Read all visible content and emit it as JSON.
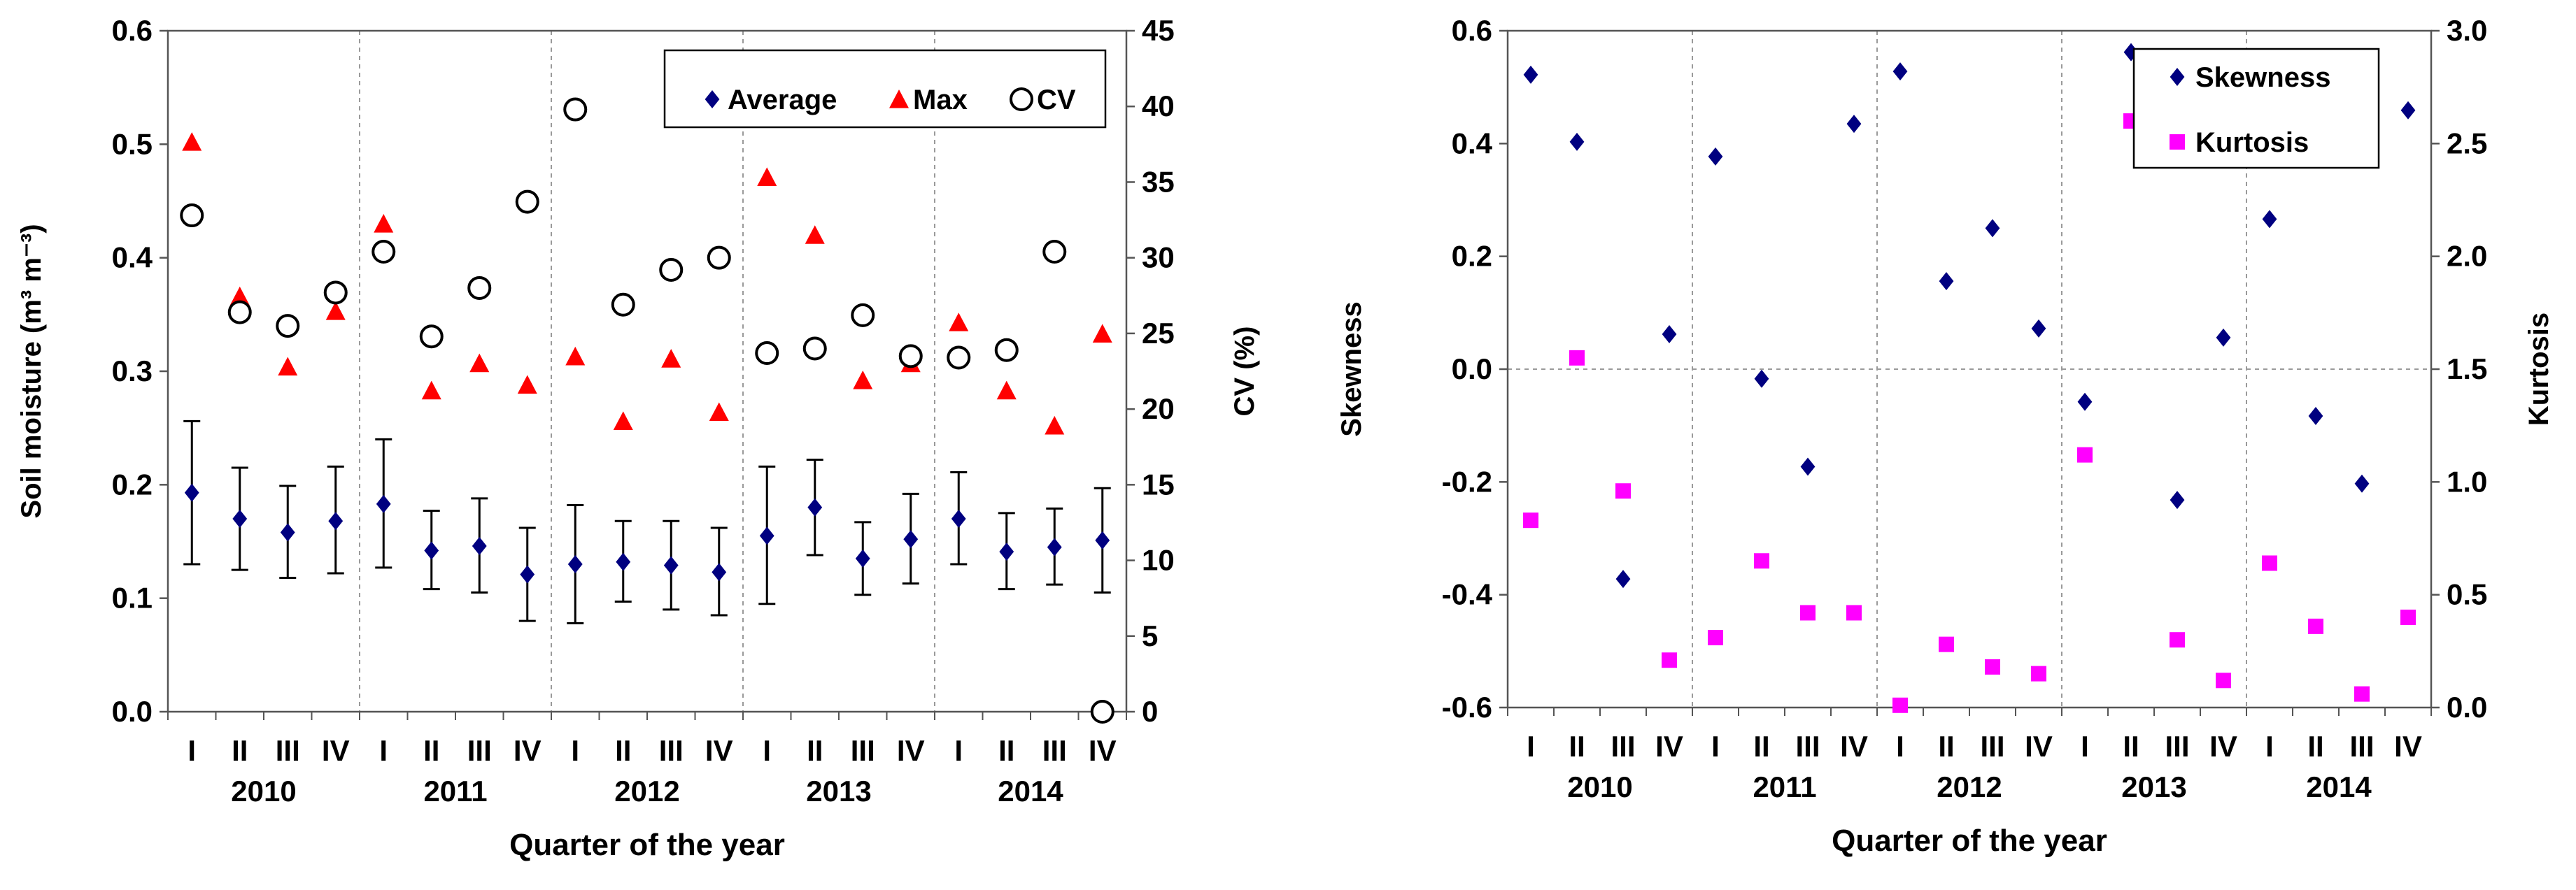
{
  "chart_data": [
    {
      "type": "scatter",
      "xlabel": "Quarter of the year",
      "ylabel": "Soil moisture (m³ m⁻³)",
      "y2label": "CV (%)",
      "categories": [
        "I",
        "II",
        "III",
        "IV",
        "I",
        "II",
        "III",
        "IV",
        "I",
        "II",
        "III",
        "IV",
        "I",
        "II",
        "III",
        "IV",
        "I",
        "II",
        "III",
        "IV"
      ],
      "years": [
        "2010",
        "2011",
        "2012",
        "2013",
        "2014"
      ],
      "ylim": [
        0,
        0.6
      ],
      "yticks": [
        "0.0",
        "0.1",
        "0.2",
        "0.3",
        "0.4",
        "0.5",
        "0.6"
      ],
      "y2lim": [
        0,
        45
      ],
      "y2ticks": [
        "0",
        "5",
        "10",
        "15",
        "20",
        "25",
        "30",
        "35",
        "40",
        "45"
      ],
      "grid": "vertical dashed separators between years",
      "legend_position": "top-right",
      "series": [
        {
          "name": "Average",
          "axis": "left",
          "marker": "diamond",
          "color": "#000080",
          "values": [
            0.193,
            0.17,
            0.158,
            0.168,
            0.183,
            0.142,
            0.146,
            0.121,
            0.13,
            0.132,
            0.129,
            0.123,
            0.155,
            0.18,
            0.135,
            0.152,
            0.17,
            0.141,
            0.145,
            0.151
          ],
          "error_low": [
            0.13,
            0.125,
            0.118,
            0.122,
            0.127,
            0.108,
            0.105,
            0.08,
            0.078,
            0.097,
            0.09,
            0.085,
            0.095,
            0.138,
            0.103,
            0.113,
            0.13,
            0.108,
            0.112,
            0.105
          ],
          "error_high": [
            0.256,
            0.215,
            0.199,
            0.216,
            0.24,
            0.177,
            0.188,
            0.162,
            0.182,
            0.168,
            0.168,
            0.162,
            0.216,
            0.222,
            0.167,
            0.192,
            0.211,
            0.175,
            0.179,
            0.197
          ]
        },
        {
          "name": "Max",
          "axis": "left",
          "marker": "triangle",
          "color": "#ff0000",
          "values": [
            0.502,
            0.366,
            0.304,
            0.353,
            0.43,
            0.283,
            0.307,
            0.288,
            0.313,
            0.256,
            0.311,
            0.264,
            0.471,
            0.42,
            0.292,
            0.307,
            0.343,
            0.283,
            0.252,
            0.333
          ]
        },
        {
          "name": "CV",
          "axis": "right",
          "marker": "circle",
          "color": "#000000",
          "values": [
            32.8,
            26.4,
            25.5,
            27.7,
            30.4,
            24.8,
            28.0,
            33.7,
            39.8,
            26.9,
            29.2,
            30.0,
            23.7,
            24.0,
            26.2,
            23.5,
            23.4,
            23.9,
            30.4,
            0
          ]
        }
      ]
    },
    {
      "type": "scatter",
      "xlabel": "Quarter of the year",
      "ylabel": "Skewness",
      "y2label": "Kurtosis",
      "categories": [
        "I",
        "II",
        "III",
        "IV",
        "I",
        "II",
        "III",
        "IV",
        "I",
        "II",
        "III",
        "IV",
        "I",
        "II",
        "III",
        "IV",
        "I",
        "II",
        "III",
        "IV"
      ],
      "years": [
        "2010",
        "2011",
        "2012",
        "2013",
        "2014"
      ],
      "ylim": [
        -0.6,
        0.6
      ],
      "yticks": [
        "-0.6",
        "-0.4",
        "-0.2",
        "0.0",
        "0.2",
        "0.4",
        "0.6"
      ],
      "y2lim": [
        0,
        3.0
      ],
      "y2ticks": [
        "0.0",
        "0.5",
        "1.0",
        "1.5",
        "2.0",
        "2.5",
        "3.0"
      ],
      "grid": "vertical dashed separators between years, horizontal dashed line at 0",
      "legend_position": "top-right",
      "series": [
        {
          "name": "Skewness",
          "axis": "left",
          "marker": "diamond",
          "color": "#000080",
          "values": [
            0.522,
            0.403,
            -0.372,
            0.062,
            0.377,
            -0.017,
            -0.173,
            0.435,
            0.528,
            0.156,
            0.25,
            0.072,
            -0.058,
            0.562,
            -0.232,
            0.056,
            0.266,
            -0.083,
            -0.203,
            0.459
          ]
        },
        {
          "name": "Kurtosis",
          "axis": "right",
          "marker": "square",
          "color": "#ff00ff",
          "values": [
            0.83,
            1.55,
            0.96,
            0.21,
            0.31,
            0.65,
            0.42,
            0.42,
            0.01,
            0.28,
            0.18,
            0.15,
            1.12,
            2.6,
            0.3,
            0.12,
            0.64,
            0.36,
            0.06,
            0.4
          ]
        }
      ]
    }
  ]
}
